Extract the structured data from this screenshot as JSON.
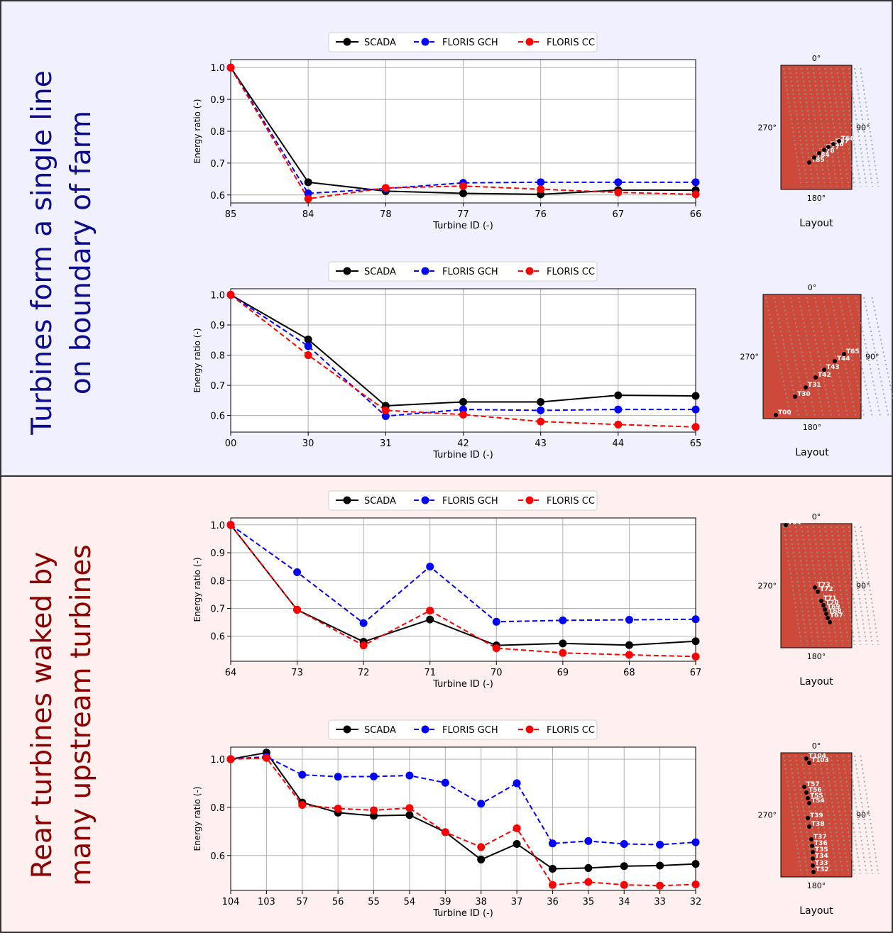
{
  "sections": [
    {
      "title_line1": "Turbines form a single line",
      "title_line2": "on boundary of farm",
      "color": "#0b0b8c"
    },
    {
      "title_line1": "Rear turbines waked by",
      "title_line2": "many upstream turbines",
      "color": "#8b0000"
    }
  ],
  "legend": {
    "scada": "SCADA",
    "gch": "FLORIS GCH",
    "cc": "FLORIS CC"
  },
  "colors": {
    "scada": "#000000",
    "gch": "#0000ff",
    "cc": "#ff0000",
    "layout_bg": "#cd4a3a",
    "turbine": "#8aa0a0",
    "wake": "#f5b08a"
  },
  "layout_labels": {
    "north": "0°",
    "east": "90°",
    "south": "180°",
    "west": "270°",
    "caption": "Layout"
  },
  "chart_data": [
    {
      "type": "line",
      "categories": [
        "85",
        "84",
        "78",
        "77",
        "76",
        "67",
        "66"
      ],
      "xlabel": "Turbine ID (-)",
      "ylabel": "Energy ratio (-)",
      "ylim": [
        0.575,
        1.025
      ],
      "yticks": [
        0.6,
        0.7,
        0.8,
        0.9,
        1.0
      ],
      "grid": true,
      "legend_position": "top-center",
      "series": [
        {
          "name": "SCADA",
          "style": "solid",
          "values": [
            1.0,
            0.64,
            0.612,
            0.605,
            0.602,
            0.615,
            0.615
          ]
        },
        {
          "name": "FLORIS GCH",
          "style": "dashed",
          "values": [
            1.0,
            0.605,
            0.62,
            0.638,
            0.64,
            0.64,
            0.64
          ]
        },
        {
          "name": "FLORIS CC",
          "style": "dashed",
          "values": [
            1.0,
            0.588,
            0.622,
            0.628,
            0.618,
            0.608,
            0.602
          ]
        }
      ],
      "layout_turbines": [
        "T85",
        "T84",
        "T78",
        "T77",
        "T76",
        "T67",
        "T66"
      ]
    },
    {
      "type": "line",
      "categories": [
        "00",
        "30",
        "31",
        "42",
        "43",
        "44",
        "65"
      ],
      "xlabel": "Turbine ID (-)",
      "ylabel": "Energy ratio (-)",
      "ylim": [
        0.545,
        1.02
      ],
      "yticks": [
        0.6,
        0.7,
        0.8,
        0.9,
        1.0
      ],
      "grid": true,
      "legend_position": "top-center",
      "series": [
        {
          "name": "SCADA",
          "style": "solid",
          "values": [
            1.0,
            0.852,
            0.632,
            0.645,
            0.645,
            0.667,
            0.665
          ]
        },
        {
          "name": "FLORIS GCH",
          "style": "dashed",
          "values": [
            1.0,
            0.83,
            0.598,
            0.62,
            0.617,
            0.62,
            0.62
          ]
        },
        {
          "name": "FLORIS CC",
          "style": "dashed",
          "values": [
            1.0,
            0.8,
            0.617,
            0.603,
            0.58,
            0.57,
            0.562
          ]
        }
      ],
      "layout_turbines": [
        "T00",
        "T30",
        "T31",
        "T42",
        "T43",
        "T44",
        "T65"
      ]
    },
    {
      "type": "line",
      "categories": [
        "64",
        "73",
        "72",
        "71",
        "70",
        "69",
        "68",
        "67"
      ],
      "xlabel": "Turbine ID (-)",
      "ylabel": "Energy ratio (-)",
      "ylim": [
        0.51,
        1.025
      ],
      "yticks": [
        0.6,
        0.7,
        0.8,
        0.9,
        1.0
      ],
      "grid": true,
      "legend_position": "top-center",
      "series": [
        {
          "name": "SCADA",
          "style": "solid",
          "values": [
            1.0,
            0.695,
            0.58,
            0.66,
            0.567,
            0.574,
            0.568,
            0.582
          ]
        },
        {
          "name": "FLORIS GCH",
          "style": "dashed",
          "values": [
            1.0,
            0.83,
            0.647,
            0.85,
            0.652,
            0.657,
            0.659,
            0.661
          ]
        },
        {
          "name": "FLORIS CC",
          "style": "dashed",
          "values": [
            1.0,
            0.695,
            0.567,
            0.692,
            0.557,
            0.54,
            0.533,
            0.527
          ]
        }
      ],
      "layout_turbines": [
        "T64",
        "T73",
        "T72",
        "T71",
        "T70",
        "T69",
        "T68",
        "T67"
      ]
    },
    {
      "type": "line",
      "categories": [
        "104",
        "103",
        "57",
        "56",
        "55",
        "54",
        "39",
        "38",
        "37",
        "36",
        "35",
        "34",
        "33",
        "32"
      ],
      "xlabel": "Turbine ID (-)",
      "ylabel": "Energy ratio (-)",
      "ylim": [
        0.455,
        1.05
      ],
      "yticks": [
        0.6,
        0.8,
        1.0
      ],
      "grid": true,
      "legend_position": "top-center",
      "series": [
        {
          "name": "SCADA",
          "style": "solid",
          "values": [
            1.0,
            1.027,
            0.82,
            0.778,
            0.765,
            0.768,
            0.697,
            0.583,
            0.648,
            0.545,
            0.548,
            0.556,
            0.558,
            0.565
          ]
        },
        {
          "name": "FLORIS GCH",
          "style": "dashed",
          "values": [
            1.0,
            1.01,
            0.935,
            0.927,
            0.928,
            0.932,
            0.902,
            0.815,
            0.9,
            0.65,
            0.66,
            0.648,
            0.645,
            0.655
          ]
        },
        {
          "name": "FLORIS CC",
          "style": "dashed",
          "values": [
            1.0,
            1.005,
            0.81,
            0.795,
            0.788,
            0.797,
            0.697,
            0.635,
            0.713,
            0.478,
            0.49,
            0.478,
            0.475,
            0.48
          ]
        }
      ],
      "layout_turbines": [
        "T104",
        "T103",
        "T57",
        "T56",
        "T55",
        "T54",
        "T39",
        "T38",
        "T37",
        "T36",
        "T35",
        "T34",
        "T33",
        "T32"
      ]
    }
  ]
}
